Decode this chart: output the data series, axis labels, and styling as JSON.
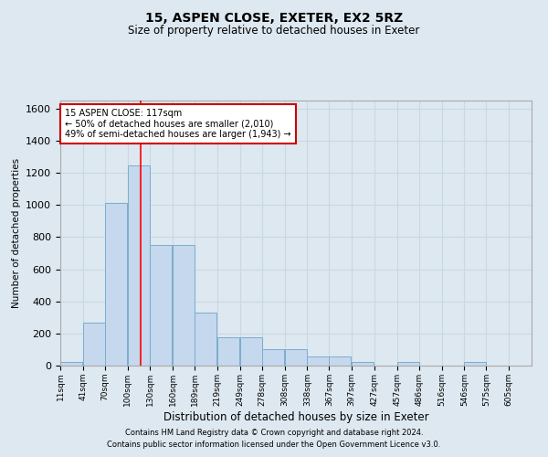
{
  "title1": "15, ASPEN CLOSE, EXETER, EX2 5RZ",
  "title2": "Size of property relative to detached houses in Exeter",
  "xlabel": "Distribution of detached houses by size in Exeter",
  "ylabel": "Number of detached properties",
  "footer1": "Contains HM Land Registry data © Crown copyright and database right 2024.",
  "footer2": "Contains public sector information licensed under the Open Government Licence v3.0.",
  "annotation_title": "15 ASPEN CLOSE: 117sqm",
  "annotation_line1": "← 50% of detached houses are smaller (2,010)",
  "annotation_line2": "49% of semi-detached houses are larger (1,943) →",
  "property_size": 117,
  "bar_color": "#c5d8ed",
  "bar_edge_color": "#7aadcf",
  "bar_left_edges": [
    11,
    41,
    70,
    100,
    130,
    160,
    189,
    219,
    249,
    278,
    308,
    338,
    367,
    397,
    427,
    457,
    486,
    516,
    546,
    575,
    605
  ],
  "bar_heights": [
    20,
    270,
    1010,
    1245,
    750,
    750,
    330,
    175,
    175,
    100,
    100,
    55,
    55,
    20,
    2,
    20,
    2,
    2,
    20,
    2,
    2
  ],
  "bar_widths": [
    29,
    29,
    29,
    29,
    29,
    29,
    29,
    29,
    29,
    29,
    29,
    29,
    29,
    29,
    29,
    29,
    29,
    29,
    29,
    29,
    29
  ],
  "tick_labels": [
    "11sqm",
    "41sqm",
    "70sqm",
    "100sqm",
    "130sqm",
    "160sqm",
    "189sqm",
    "219sqm",
    "249sqm",
    "278sqm",
    "308sqm",
    "338sqm",
    "367sqm",
    "397sqm",
    "427sqm",
    "457sqm",
    "486sqm",
    "516sqm",
    "546sqm",
    "575sqm",
    "605sqm"
  ],
  "ylim": [
    0,
    1650
  ],
  "yticks": [
    0,
    200,
    400,
    600,
    800,
    1000,
    1200,
    1400,
    1600
  ],
  "xlim_left": 11,
  "xlim_right": 635,
  "red_line_x": 117,
  "annotation_box_color": "#ffffff",
  "annotation_box_edge": "#cc0000",
  "grid_color": "#c8d8e4",
  "bg_color": "#dde8f0",
  "title1_fontsize": 10,
  "title2_fontsize": 8.5,
  "xlabel_fontsize": 8.5,
  "ylabel_fontsize": 7.5,
  "ytick_fontsize": 8,
  "xtick_fontsize": 6.5,
  "footer_fontsize": 6,
  "annotation_fontsize": 7
}
